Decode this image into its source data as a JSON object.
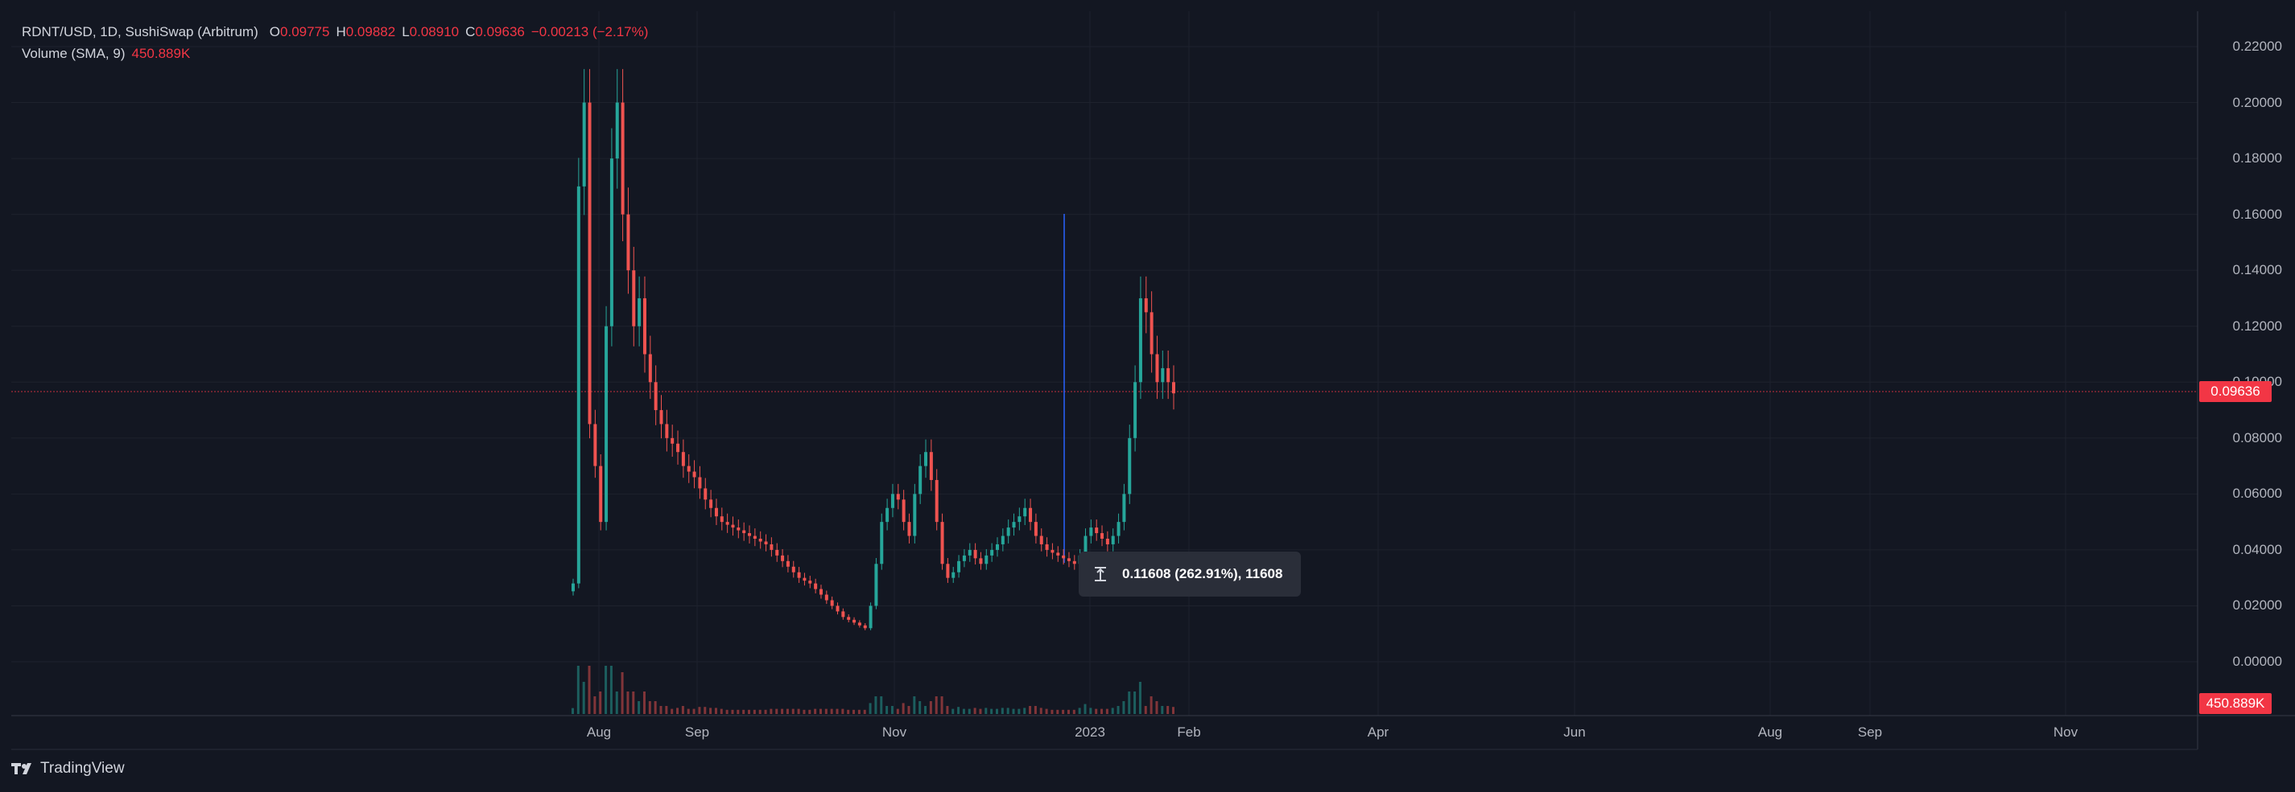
{
  "legend": {
    "symbol": "RDNT/USD, 1D, SushiSwap (Arbitrum)",
    "open_label": "O",
    "open": "0.09775",
    "high_label": "H",
    "high": "0.09882",
    "low_label": "L",
    "low": "0.08910",
    "close_label": "C",
    "close": "0.09636",
    "change": "−0.00213 (−2.17%)",
    "volume_title": "Volume (SMA, 9)",
    "volume_value": "450.889K"
  },
  "price_axis": [
    "0.22000",
    "0.20000",
    "0.18000",
    "0.16000",
    "0.14000",
    "0.12000",
    "0.10000",
    "0.08000",
    "0.06000",
    "0.04000",
    "0.02000",
    "0.00000"
  ],
  "last_price_badge": "0.09636",
  "volume_badge": "450.889K",
  "time_axis": [
    "Aug",
    "Sep",
    "Nov",
    "2023",
    "Feb",
    "Apr",
    "Jun",
    "Aug",
    "Sep",
    "Nov"
  ],
  "measure_tooltip": "0.11608 (262.91%), 11608",
  "footer": {
    "brand": "TradingView"
  },
  "colors": {
    "background": "#131722",
    "up": "#26a69a",
    "down": "#ef5350",
    "crosshair": "#2962ff",
    "badge": "#f23645"
  },
  "chart_data": {
    "type": "candlestick",
    "symbol": "RDNT/USD",
    "interval": "1D",
    "ylim": [
      -0.009,
      0.23
    ],
    "last_close": 0.09636,
    "ohlc_close_series_approx": [
      0.028,
      0.17,
      0.2,
      0.085,
      0.07,
      0.05,
      0.12,
      0.18,
      0.2,
      0.16,
      0.14,
      0.12,
      0.13,
      0.11,
      0.1,
      0.09,
      0.085,
      0.08,
      0.078,
      0.075,
      0.07,
      0.068,
      0.066,
      0.062,
      0.058,
      0.055,
      0.052,
      0.05,
      0.049,
      0.048,
      0.047,
      0.046,
      0.045,
      0.044,
      0.043,
      0.042,
      0.04,
      0.038,
      0.036,
      0.034,
      0.032,
      0.03,
      0.029,
      0.028,
      0.026,
      0.024,
      0.022,
      0.02,
      0.018,
      0.016,
      0.015,
      0.014,
      0.013,
      0.012,
      0.02,
      0.035,
      0.05,
      0.055,
      0.06,
      0.058,
      0.05,
      0.045,
      0.06,
      0.07,
      0.075,
      0.065,
      0.05,
      0.035,
      0.03,
      0.032,
      0.036,
      0.038,
      0.04,
      0.037,
      0.035,
      0.038,
      0.04,
      0.042,
      0.045,
      0.048,
      0.05,
      0.052,
      0.055,
      0.05,
      0.045,
      0.042,
      0.04,
      0.039,
      0.038,
      0.037,
      0.036,
      0.035,
      0.038,
      0.045,
      0.048,
      0.046,
      0.044,
      0.042,
      0.045,
      0.05,
      0.06,
      0.08,
      0.1,
      0.13,
      0.125,
      0.11,
      0.1,
      0.105,
      0.1,
      0.096
    ]
  }
}
